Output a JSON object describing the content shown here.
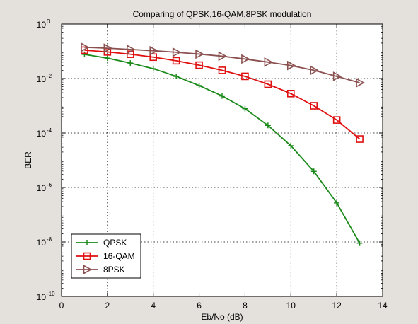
{
  "chart_data": {
    "type": "line",
    "title": "Comparing of QPSK,16-QAM,8PSK modulation",
    "xlabel": "Eb/No (dB)",
    "ylabel": "BER",
    "xlim": [
      0,
      14
    ],
    "ylim_log10": [
      -10,
      0
    ],
    "yscale": "log",
    "x_ticks": [
      0,
      2,
      4,
      6,
      8,
      10,
      12,
      14
    ],
    "y_tick_exponents": [
      0,
      -2,
      -4,
      -6,
      -8,
      -10
    ],
    "y_tick_base": "10",
    "grid": true,
    "legend": "bottom-left",
    "series": [
      {
        "name": "QPSK",
        "color": "#1a8a1a",
        "marker": "plus",
        "x": [
          1,
          2,
          3,
          4,
          5,
          6,
          7,
          8,
          9,
          10,
          11,
          12,
          13
        ],
        "y": [
          0.077,
          0.056,
          0.037,
          0.023,
          0.012,
          0.0055,
          0.0023,
          0.00078,
          0.00019,
          3.4e-05,
          3.9e-06,
          2.7e-07,
          9e-09
        ]
      },
      {
        "name": "16-QAM",
        "color": "#e01010",
        "marker": "square",
        "x": [
          1,
          2,
          3,
          4,
          5,
          6,
          7,
          8,
          9,
          10,
          11,
          12,
          13
        ],
        "y": [
          0.11,
          0.095,
          0.078,
          0.061,
          0.045,
          0.031,
          0.02,
          0.012,
          0.0062,
          0.0028,
          0.001,
          0.0003,
          6e-05
        ]
      },
      {
        "name": "8PSK",
        "color": "#8b5050",
        "marker": "triangle-right",
        "x": [
          1,
          2,
          3,
          4,
          5,
          6,
          7,
          8,
          9,
          10,
          11,
          12,
          13
        ],
        "y": [
          0.14,
          0.13,
          0.117,
          0.105,
          0.092,
          0.079,
          0.066,
          0.052,
          0.04,
          0.03,
          0.02,
          0.012,
          0.007
        ]
      }
    ]
  }
}
